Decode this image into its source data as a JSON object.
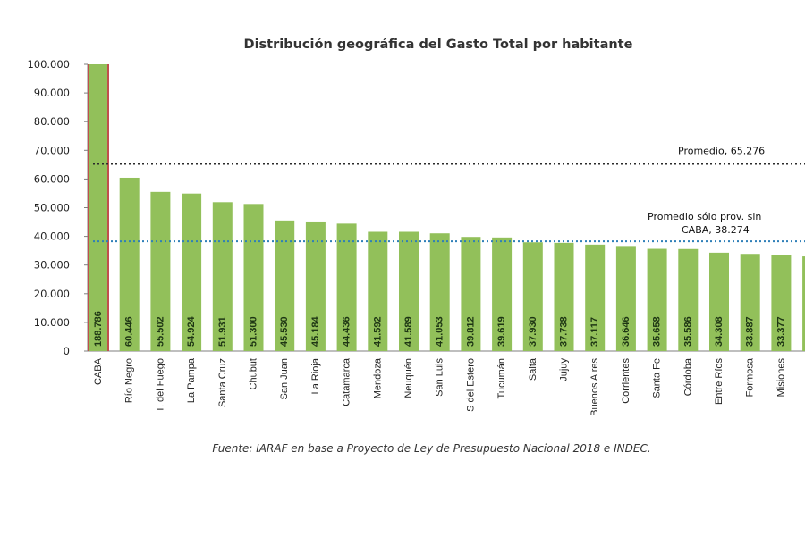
{
  "chart_data": {
    "type": "bar",
    "title": "Distribución geográfica del Gasto Total por habitante",
    "xlabel": "",
    "ylabel": "",
    "ylim": [
      0,
      100000
    ],
    "yticks": [
      {
        "value": 0,
        "label": "0"
      },
      {
        "value": 10000,
        "label": "10.000"
      },
      {
        "value": 20000,
        "label": "20.000"
      },
      {
        "value": 30000,
        "label": "30.000"
      },
      {
        "value": 40000,
        "label": "40.000"
      },
      {
        "value": 50000,
        "label": "50.000"
      },
      {
        "value": 60000,
        "label": "60.000"
      },
      {
        "value": 70000,
        "label": "70.000"
      },
      {
        "value": 80000,
        "label": "80.000"
      },
      {
        "value": 90000,
        "label": "90.000"
      },
      {
        "value": 100000,
        "label": "100.000"
      }
    ],
    "categories": [
      "CABA",
      "Río Negro",
      "T. del Fuego",
      "La Pampa",
      "Santa Cruz",
      "Chubut",
      "San Juan",
      "La Rioja",
      "Catamarca",
      "Mendoza",
      "Neuquén",
      "San Luis",
      "S del Estero",
      "Tucumán",
      "Salta",
      "Jujuy",
      "Buenos Aires",
      "Corrientes",
      "Santa Fe",
      "Córdoba",
      "Entre Ríos",
      "Formosa",
      "Misiones"
    ],
    "values": [
      188786,
      60446,
      55502,
      54924,
      51931,
      51300,
      45530,
      45184,
      44436,
      41592,
      41589,
      41053,
      39812,
      39619,
      37930,
      37738,
      37117,
      36646,
      35658,
      35586,
      34308,
      33887,
      33377
    ],
    "value_labels": [
      "188.786",
      "60.446",
      "55.502",
      "54.924",
      "51.931",
      "51.300",
      "45.530",
      "45.184",
      "44.436",
      "41.592",
      "41.589",
      "41.053",
      "39.812",
      "39.619",
      "37.930",
      "37.738",
      "37.117",
      "36.646",
      "35.658",
      "35.586",
      "34.308",
      "33.887",
      "33.377"
    ],
    "partial_bar_value": 33000,
    "reference_lines": [
      {
        "value": 65276,
        "label": "Promedio, 65.276",
        "color": "#2b2b2b"
      },
      {
        "value": 38274,
        "label_line1": "Promedio sólo prov. sin",
        "label_line2": "CABA, 38.274",
        "color": "#2e7fb8"
      }
    ],
    "colors": {
      "bar": "#92c05a",
      "bar_highlight_edge": "#c0504d",
      "axis": "#7f7f7f"
    }
  },
  "source_note": "Fuente: IARAF en base a Proyecto de Ley de Presupuesto Nacional 2018 e INDEC."
}
